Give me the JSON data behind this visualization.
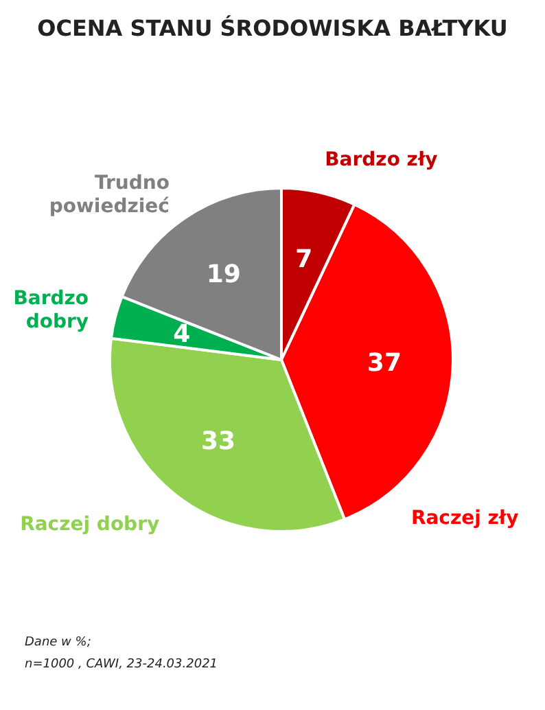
{
  "chart_data": {
    "type": "pie",
    "title": "OCENA STANU ŚRODOWISKA BAŁTYKU",
    "categories": [
      "Bardzo zły",
      "Raczej zły",
      "Raczej dobry",
      "Bardzo dobry",
      "Trudno powiedzieć"
    ],
    "values": [
      7,
      37,
      33,
      4,
      19
    ],
    "colors": [
      "#c00000",
      "#ff0000",
      "#92d050",
      "#00b050",
      "#808080"
    ],
    "data_labels": true,
    "annotations": [
      "Dane w %;",
      "n=1000 , CAWI, 23-24.03.2021"
    ]
  }
}
